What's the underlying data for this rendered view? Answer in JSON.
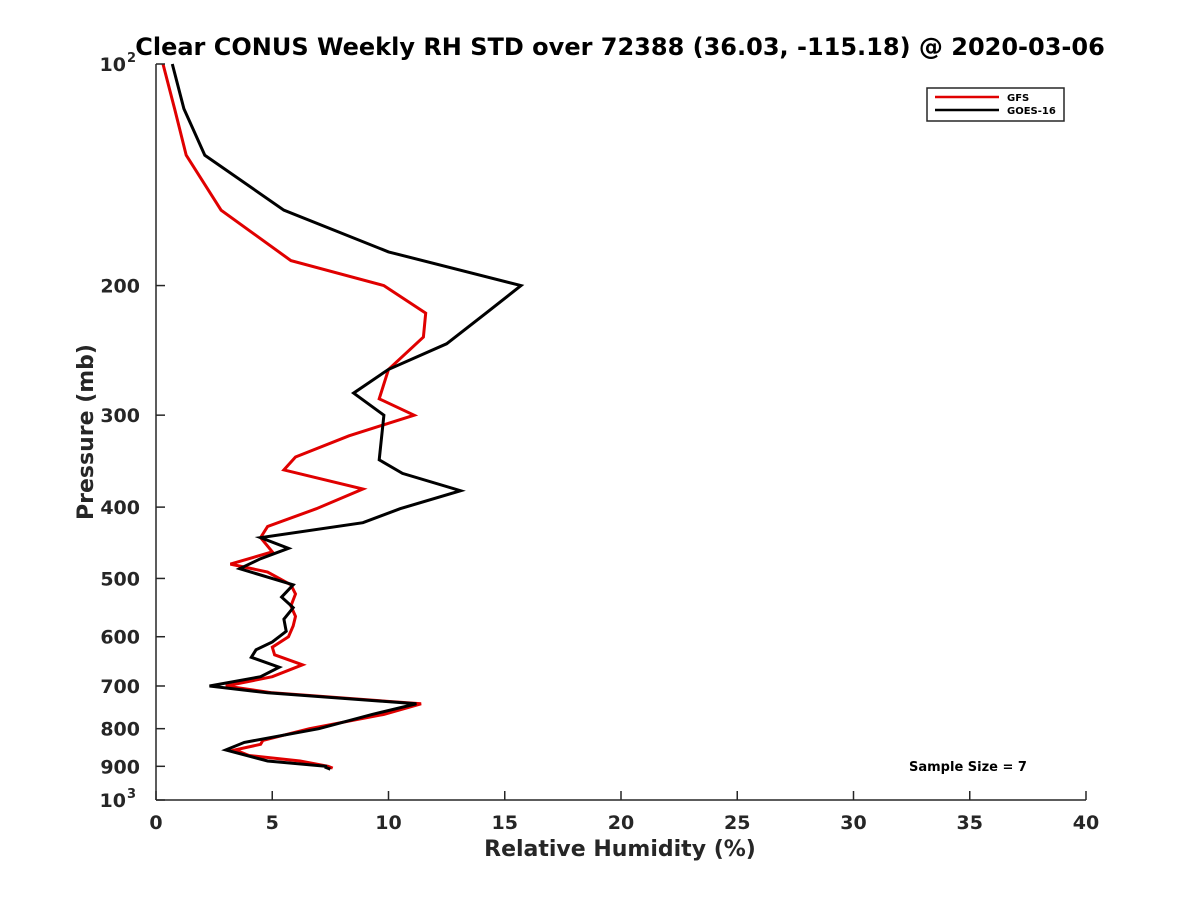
{
  "chart_data": {
    "type": "line",
    "title": "Clear CONUS Weekly RH STD over 72388 (36.03, -115.18) @ 2020-03-06",
    "xlabel": "Relative Humidity (%)",
    "ylabel": "Pressure (mb)",
    "xlim": [
      0,
      40
    ],
    "ylim": [
      100,
      1000
    ],
    "y_scale": "log",
    "y_reversed": true,
    "x_ticks": [
      0,
      5,
      10,
      15,
      20,
      25,
      30,
      35,
      40
    ],
    "y_ticks": [
      {
        "value": 100,
        "base": "10",
        "exp": "2"
      },
      {
        "value": 200,
        "label": "200"
      },
      {
        "value": 300,
        "label": "300"
      },
      {
        "value": 400,
        "label": "400"
      },
      {
        "value": 500,
        "label": "500"
      },
      {
        "value": 600,
        "label": "600"
      },
      {
        "value": 700,
        "label": "700"
      },
      {
        "value": 800,
        "label": "800"
      },
      {
        "value": 900,
        "label": "900"
      },
      {
        "value": 1000,
        "base": "10",
        "exp": "3"
      }
    ],
    "grid": false,
    "legend_position": "top-right",
    "annotation": "Sample Size = 7",
    "series": [
      {
        "name": "GFS",
        "color": "#e00000",
        "points": [
          [
            0.3,
            100
          ],
          [
            0.8,
            115
          ],
          [
            1.3,
            133
          ],
          [
            2.8,
            158
          ],
          [
            5.8,
            185
          ],
          [
            9.8,
            200
          ],
          [
            11.6,
            218
          ],
          [
            11.5,
            235
          ],
          [
            10.0,
            260
          ],
          [
            9.6,
            285
          ],
          [
            11.1,
            300
          ],
          [
            8.3,
            320
          ],
          [
            6.0,
            342
          ],
          [
            5.5,
            356
          ],
          [
            8.9,
            378
          ],
          [
            6.9,
            402
          ],
          [
            4.8,
            425
          ],
          [
            4.5,
            440
          ],
          [
            5.0,
            460
          ],
          [
            3.2,
            478
          ],
          [
            4.8,
            490
          ],
          [
            5.8,
            510
          ],
          [
            6.0,
            525
          ],
          [
            5.8,
            545
          ],
          [
            6.0,
            563
          ],
          [
            5.9,
            580
          ],
          [
            5.7,
            600
          ],
          [
            5.0,
            620
          ],
          [
            5.1,
            635
          ],
          [
            6.3,
            655
          ],
          [
            5.0,
            680
          ],
          [
            3.0,
            700
          ],
          [
            5.0,
            715
          ],
          [
            11.4,
            740
          ],
          [
            9.8,
            765
          ],
          [
            6.6,
            800
          ],
          [
            4.6,
            830
          ],
          [
            4.5,
            840
          ],
          [
            3.4,
            855
          ],
          [
            4.0,
            870
          ],
          [
            6.2,
            885
          ],
          [
            7.4,
            900
          ],
          [
            7.6,
            905
          ]
        ]
      },
      {
        "name": "GOES-16",
        "color": "#000000",
        "points": [
          [
            0.7,
            100
          ],
          [
            1.2,
            115
          ],
          [
            2.1,
            133
          ],
          [
            5.5,
            158
          ],
          [
            10.0,
            180
          ],
          [
            15.7,
            200
          ],
          [
            14.2,
            218
          ],
          [
            12.5,
            240
          ],
          [
            10.0,
            260
          ],
          [
            8.5,
            280
          ],
          [
            9.8,
            300
          ],
          [
            9.6,
            345
          ],
          [
            10.6,
            360
          ],
          [
            13.1,
            380
          ],
          [
            10.5,
            402
          ],
          [
            8.9,
            420
          ],
          [
            4.5,
            440
          ],
          [
            5.7,
            455
          ],
          [
            4.5,
            470
          ],
          [
            3.6,
            485
          ],
          [
            5.9,
            510
          ],
          [
            5.4,
            530
          ],
          [
            5.9,
            548
          ],
          [
            5.5,
            568
          ],
          [
            5.6,
            590
          ],
          [
            5.0,
            610
          ],
          [
            4.3,
            625
          ],
          [
            4.1,
            640
          ],
          [
            5.3,
            660
          ],
          [
            4.5,
            680
          ],
          [
            2.3,
            700
          ],
          [
            4.8,
            715
          ],
          [
            11.2,
            740
          ],
          [
            9.3,
            765
          ],
          [
            7.0,
            800
          ],
          [
            3.8,
            835
          ],
          [
            3.0,
            855
          ],
          [
            4.8,
            885
          ],
          [
            7.3,
            900
          ],
          [
            7.3,
            903
          ],
          [
            7.5,
            908
          ]
        ]
      }
    ]
  }
}
